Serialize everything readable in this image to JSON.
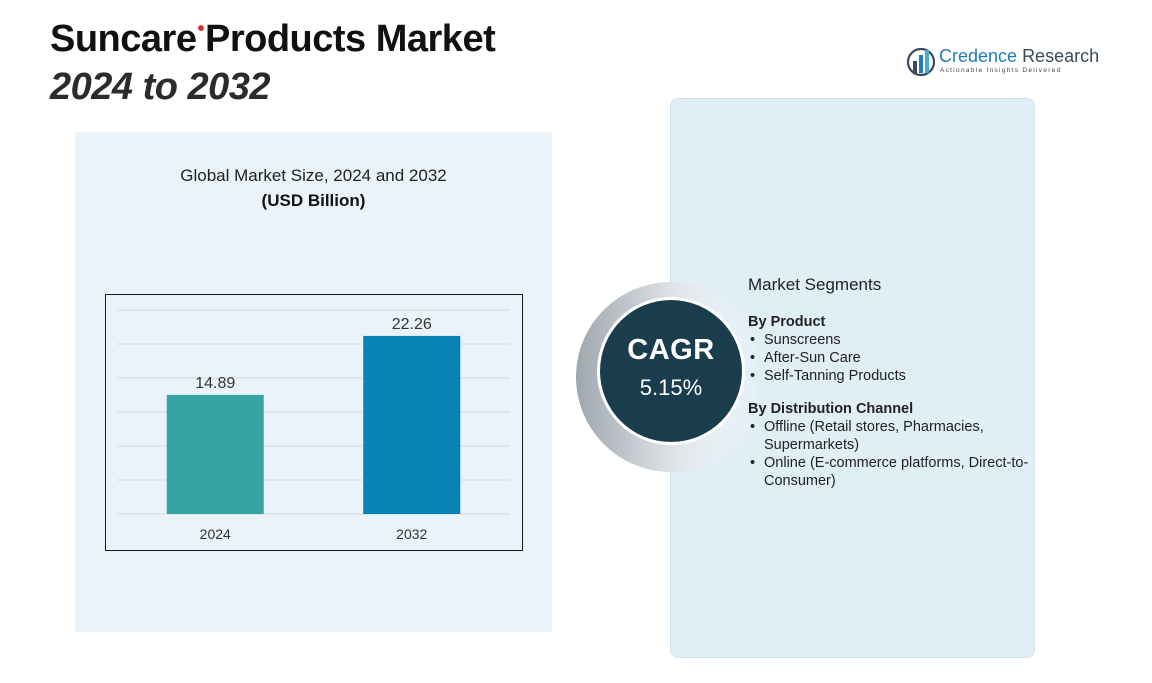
{
  "header": {
    "title_line1_a": "Suncare",
    "title_line1_b": "Products Market",
    "title_line2": "2024 to 2032"
  },
  "logo": {
    "name_a": "Credence",
    "name_b": "Research",
    "tagline": "Actionable Insights Delivered",
    "colors": {
      "primary": "#1f7db8",
      "secondary": "#3a4a5a"
    }
  },
  "chart_data": {
    "type": "bar",
    "title": "Global Market Size, 2024 and 2032",
    "subtitle": "(USD Billion)",
    "categories": [
      "2024",
      "2032"
    ],
    "values": [
      14.89,
      22.26
    ],
    "value_labels": [
      "14.89",
      "22.26"
    ],
    "colors": [
      "#36a3a4",
      "#0682b3"
    ],
    "ylim": [
      0,
      26
    ],
    "grid": true,
    "legend": "none"
  },
  "cagr": {
    "label": "CAGR",
    "value": "5.15%",
    "colors": {
      "circle": "#1a3d4e"
    }
  },
  "segments": {
    "heading": "Market Segments",
    "groups": [
      {
        "title": "By Product",
        "items": [
          "Sunscreens",
          "After-Sun Care",
          "Self-Tanning Products"
        ]
      },
      {
        "title": "By Distribution Channel",
        "items": [
          "Offline (Retail stores, Pharmacies, Supermarkets)",
          "Online (E-commerce platforms, Direct-to-Consumer)"
        ]
      }
    ]
  }
}
